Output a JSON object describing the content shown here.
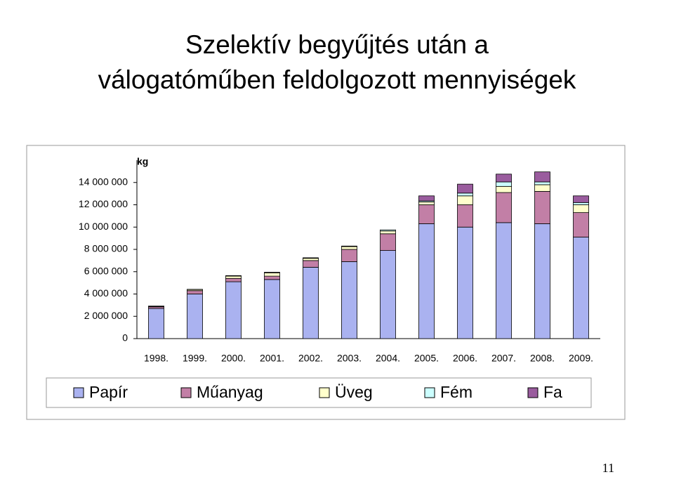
{
  "page_title_line1": "Szelektív begyűjtés után a",
  "page_title_line2": "válogatóműben feldolgozott mennyiségek",
  "page_number": "11",
  "chart_data": {
    "type": "stacked_bar",
    "y_label": "kg",
    "categories": [
      "1998.",
      "1999.",
      "2000.",
      "2001.",
      "2002.",
      "2003.",
      "2004.",
      "2005.",
      "2006.",
      "2007.",
      "2008.",
      "2009."
    ],
    "series": [
      {
        "name": "Papír",
        "color": "#aab2f0",
        "values": [
          2700000,
          4000000,
          5100000,
          5300000,
          6400000,
          6900000,
          7900000,
          10300000,
          10000000,
          10400000,
          10300000,
          9100000
        ]
      },
      {
        "name": "Műanyag",
        "color": "#c27fa6",
        "values": [
          150000,
          300000,
          300000,
          300000,
          600000,
          1100000,
          1500000,
          1700000,
          2000000,
          2700000,
          2900000,
          2200000
        ]
      },
      {
        "name": "Üveg",
        "color": "#ffffcc",
        "values": [
          50000,
          100000,
          200000,
          300000,
          200000,
          250000,
          250000,
          250000,
          800000,
          550000,
          600000,
          700000
        ]
      },
      {
        "name": "Fém",
        "color": "#ccffff",
        "values": [
          20000,
          20000,
          50000,
          50000,
          50000,
          50000,
          100000,
          100000,
          250000,
          400000,
          250000,
          200000
        ]
      },
      {
        "name": "Fa",
        "color": "#9a5c9e",
        "values": [
          0,
          0,
          0,
          0,
          0,
          0,
          0,
          450000,
          800000,
          700000,
          900000,
          600000
        ]
      }
    ],
    "ylim": [
      0,
      16000000
    ],
    "yticks": [
      0,
      {
        "value": 2000000,
        "label": "2 000 000"
      },
      {
        "value": 4000000,
        "label": "4 000 000"
      },
      {
        "value": 6000000,
        "label": "6 000 000"
      },
      {
        "value": 8000000,
        "label": "8 000 000"
      },
      {
        "value": 10000000,
        "label": "10 000 000"
      },
      {
        "value": 12000000,
        "label": "12 000 000"
      },
      {
        "value": 14000000,
        "label": "14 000 000"
      }
    ],
    "grid": false
  }
}
